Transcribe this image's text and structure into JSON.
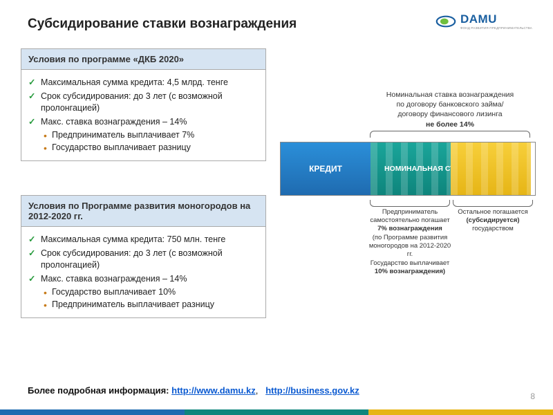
{
  "title": "Субсидирование ставки вознаграждения",
  "logo": {
    "text": "DAMU",
    "subtitle": "ФОНД РАЗВИТИЯ ПРЕДПРИНИМАТЕЛЬСТВА"
  },
  "panel1": {
    "header": "Условия по программе «ДКБ 2020»",
    "items": [
      {
        "kind": "check",
        "text": "Максимальная сумма кредита: 4,5 млрд. тенге"
      },
      {
        "kind": "check",
        "text": "Срок субсидирования: до 3 лет (с возможной пролонгацией)"
      },
      {
        "kind": "check",
        "text": "Макс. ставка вознаграждения – 14%"
      },
      {
        "kind": "dot",
        "text": "Предприниматель выплачивает 7%"
      },
      {
        "kind": "dot",
        "text": "Государство выплачивает разницу"
      }
    ]
  },
  "panel2": {
    "header": "Условия по Программе развития моногородов на 2012-2020 гг.",
    "items": [
      {
        "kind": "check",
        "text": "Максимальная сумма кредита: 750 млн. тенге"
      },
      {
        "kind": "check",
        "text": "Срок субсидирования: до 3 лет (с возможной пролонгацией)"
      },
      {
        "kind": "check",
        "text": "Макс. ставка вознаграждения – 14%"
      },
      {
        "kind": "dot",
        "text": "Государство выплачивает 10%"
      },
      {
        "kind": "dot",
        "text": "Предприниматель выплачивает разницу"
      }
    ]
  },
  "diagram": {
    "top_lines": [
      "Номинальная ставка вознаграждения",
      "по договору банковского займа/",
      "договору финансового лизинга"
    ],
    "top_bold": "не более 14%",
    "seg_blue": "КРЕДИТ",
    "seg_overlay": "НОМИНАЛЬНАЯ СТАВКА ПО КРЕДИТУ",
    "colors": {
      "blue": "#1f6bb0",
      "teal": "#0e857c",
      "yellow": "#e6b516"
    },
    "left_caption": {
      "lines": [
        "Предприниматель",
        "самостоятельно погашает"
      ],
      "bold": "7% вознаграждения",
      "lines2": [
        "(по Программе развития",
        "моногородов на 2012-2020 гг.",
        "Государство выплачивает"
      ],
      "bold2": "10% вознаграждения)"
    },
    "right_caption": {
      "lines": [
        "Остальное погашается"
      ],
      "bold": "(субсидируется)",
      "lines2": [
        "государством"
      ]
    }
  },
  "footer": {
    "prefix": "Более подробная информация: ",
    "link1": "http://www.damu.kz",
    "link2": "http://business.gov.kz"
  },
  "page": "8"
}
